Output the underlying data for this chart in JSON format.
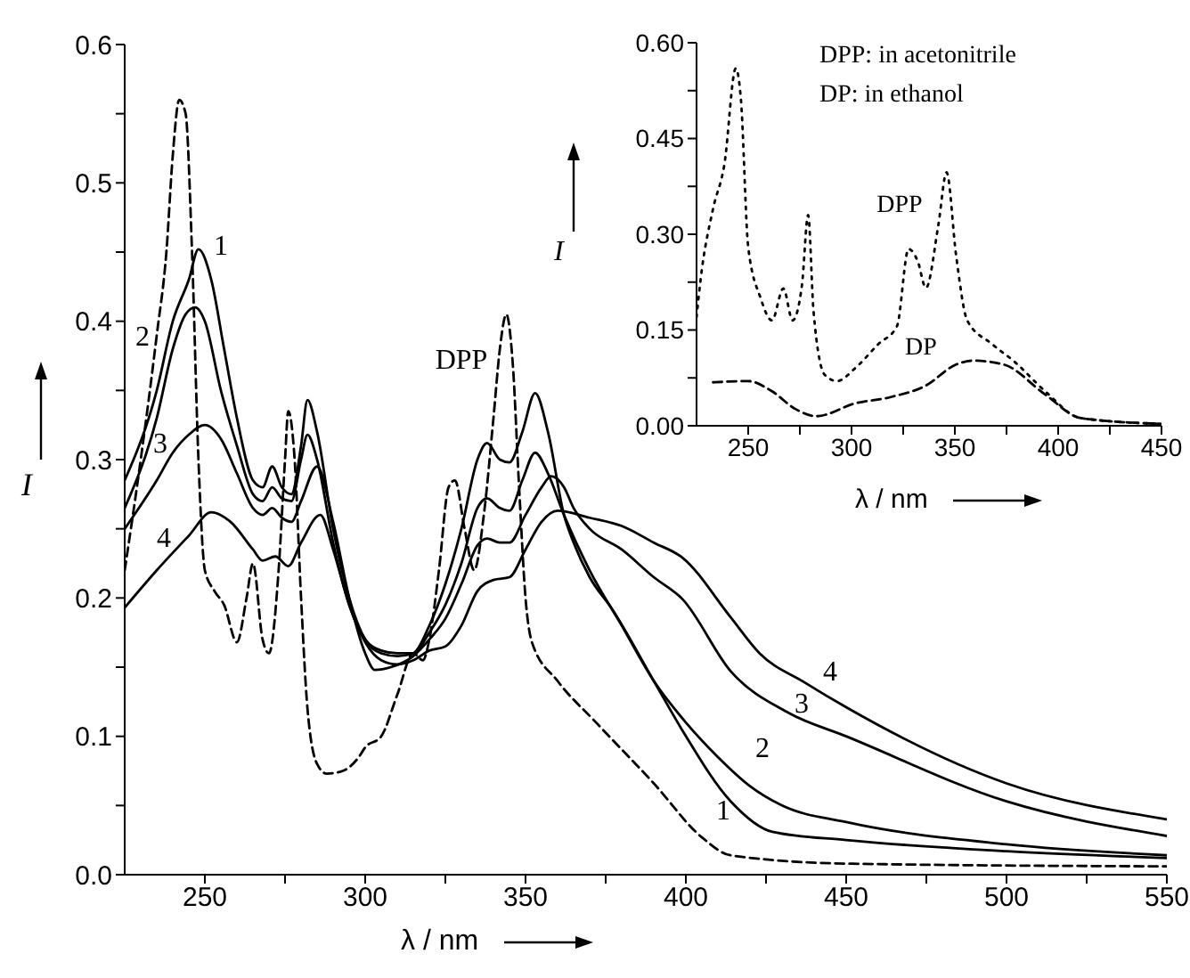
{
  "chart_data": [
    {
      "type": "line",
      "xlabel": "λ / nm",
      "ylabel": "I",
      "xlim": [
        225,
        550
      ],
      "ylim": [
        0,
        0.6
      ],
      "xticks": [
        {
          "value": 250,
          "label": "250"
        },
        {
          "value": 275,
          "label": null
        },
        {
          "value": 300,
          "label": "300"
        },
        {
          "value": 325,
          "label": null
        },
        {
          "value": 350,
          "label": "350"
        },
        {
          "value": 375,
          "label": null
        },
        {
          "value": 400,
          "label": "400"
        },
        {
          "value": 425,
          "label": null
        },
        {
          "value": 450,
          "label": "450"
        },
        {
          "value": 475,
          "label": null
        },
        {
          "value": 500,
          "label": "500"
        },
        {
          "value": 525,
          "label": null
        },
        {
          "value": 550,
          "label": "550"
        }
      ],
      "yticks": [
        {
          "value": 0,
          "label": "0.0"
        },
        {
          "value": 0.05,
          "label": null
        },
        {
          "value": 0.1,
          "label": "0.1"
        },
        {
          "value": 0.15,
          "label": null
        },
        {
          "value": 0.2,
          "label": "0.2"
        },
        {
          "value": 0.25,
          "label": null
        },
        {
          "value": 0.3,
          "label": "0.3"
        },
        {
          "value": 0.35,
          "label": null
        },
        {
          "value": 0.4,
          "label": "0.4"
        },
        {
          "value": 0.45,
          "label": null
        },
        {
          "value": 0.5,
          "label": "0.5"
        },
        {
          "value": 0.55,
          "label": null
        },
        {
          "value": 0.6,
          "label": "0.6"
        }
      ],
      "grid": false,
      "series": [
        {
          "color": "#000000",
          "line_style": "solid",
          "x": [
            225,
            235,
            240,
            245,
            248,
            252,
            256,
            260,
            265,
            268,
            271,
            274,
            277,
            280,
            282,
            285,
            290,
            295,
            300,
            305,
            310,
            315,
            320,
            325,
            330,
            335,
            338,
            342,
            345,
            349,
            353,
            357,
            362,
            365,
            370,
            377,
            390,
            399,
            414,
            427,
            450,
            500,
            550
          ],
          "values": [
            0.285,
            0.35,
            0.4,
            0.43,
            0.452,
            0.43,
            0.38,
            0.33,
            0.285,
            0.28,
            0.295,
            0.28,
            0.275,
            0.31,
            0.343,
            0.32,
            0.25,
            0.2,
            0.17,
            0.16,
            0.158,
            0.16,
            0.18,
            0.21,
            0.25,
            0.3,
            0.312,
            0.3,
            0.298,
            0.32,
            0.348,
            0.32,
            0.26,
            0.24,
            0.215,
            0.192,
            0.14,
            0.104,
            0.053,
            0.031,
            0.025,
            0.017,
            0.012
          ]
        },
        {
          "color": "#000000",
          "line_style": "solid",
          "x": [
            225,
            235,
            240,
            244,
            247,
            250,
            255,
            260,
            265,
            268,
            271,
            274,
            277,
            280,
            282,
            285,
            290,
            295,
            300,
            305,
            310,
            315,
            320,
            325,
            330,
            335,
            338,
            342,
            345,
            349,
            353,
            357,
            362,
            370,
            380,
            390,
            400,
            410,
            420,
            430,
            450,
            500,
            550
          ],
          "values": [
            0.265,
            0.33,
            0.38,
            0.405,
            0.41,
            0.4,
            0.35,
            0.31,
            0.275,
            0.27,
            0.28,
            0.272,
            0.27,
            0.3,
            0.318,
            0.3,
            0.24,
            0.195,
            0.17,
            0.162,
            0.16,
            0.16,
            0.175,
            0.195,
            0.225,
            0.265,
            0.272,
            0.265,
            0.263,
            0.285,
            0.305,
            0.29,
            0.26,
            0.22,
            0.18,
            0.14,
            0.11,
            0.085,
            0.064,
            0.05,
            0.038,
            0.022,
            0.014
          ]
        },
        {
          "color": "#000000",
          "line_style": "solid",
          "x": [
            225,
            235,
            240,
            245,
            250,
            255,
            260,
            265,
            268,
            271,
            274,
            277,
            280,
            285,
            290,
            295,
            300,
            303,
            308,
            315,
            320,
            325,
            330,
            335,
            338,
            342,
            345,
            350,
            355,
            358,
            362,
            365,
            370,
            380,
            390,
            399,
            414,
            432,
            450,
            500,
            550
          ],
          "values": [
            0.25,
            0.285,
            0.305,
            0.318,
            0.325,
            0.315,
            0.29,
            0.265,
            0.26,
            0.265,
            0.258,
            0.255,
            0.27,
            0.295,
            0.255,
            0.2,
            0.16,
            0.148,
            0.15,
            0.158,
            0.17,
            0.185,
            0.21,
            0.238,
            0.243,
            0.24,
            0.24,
            0.26,
            0.28,
            0.288,
            0.28,
            0.265,
            0.25,
            0.235,
            0.215,
            0.199,
            0.147,
            0.117,
            0.1,
            0.053,
            0.028
          ]
        },
        {
          "color": "#000000",
          "line_style": "solid",
          "x": [
            225,
            235,
            245,
            252,
            258,
            265,
            268,
            272,
            276,
            280,
            286,
            290,
            295,
            300,
            305,
            310,
            315,
            320,
            325,
            330,
            335,
            340,
            345,
            350,
            355,
            360,
            370,
            380,
            390,
            399,
            414,
            423,
            437,
            450,
            500,
            550
          ],
          "values": [
            0.193,
            0.22,
            0.245,
            0.262,
            0.255,
            0.235,
            0.227,
            0.23,
            0.223,
            0.24,
            0.26,
            0.235,
            0.195,
            0.168,
            0.155,
            0.152,
            0.155,
            0.162,
            0.165,
            0.18,
            0.205,
            0.213,
            0.215,
            0.235,
            0.255,
            0.263,
            0.258,
            0.252,
            0.24,
            0.229,
            0.186,
            0.16,
            0.139,
            0.121,
            0.066,
            0.04
          ]
        },
        {
          "color": "#000000",
          "line_style": "dashed",
          "x": [
            225,
            230,
            235,
            238,
            240,
            242,
            244,
            246,
            248,
            250,
            253,
            256,
            260,
            263,
            265,
            268,
            270,
            273,
            275,
            276,
            278,
            280,
            282,
            285,
            288,
            293,
            298,
            300,
            305,
            310,
            315,
            318,
            320,
            323,
            326,
            328,
            331,
            334,
            337,
            340,
            342,
            344,
            346,
            348,
            350,
            352,
            360,
            372,
            390,
            405,
            414,
            450,
            550
          ],
          "values": [
            0.22,
            0.3,
            0.39,
            0.45,
            0.52,
            0.56,
            0.55,
            0.45,
            0.3,
            0.22,
            0.205,
            0.195,
            0.168,
            0.2,
            0.225,
            0.17,
            0.16,
            0.22,
            0.3,
            0.335,
            0.3,
            0.2,
            0.12,
            0.08,
            0.073,
            0.075,
            0.085,
            0.092,
            0.1,
            0.13,
            0.16,
            0.155,
            0.17,
            0.22,
            0.28,
            0.285,
            0.25,
            0.22,
            0.26,
            0.33,
            0.38,
            0.405,
            0.37,
            0.28,
            0.2,
            0.168,
            0.14,
            0.11,
            0.066,
            0.027,
            0.014,
            0.008,
            0.006
          ]
        }
      ],
      "annotations": [
        "1",
        "2",
        "3",
        "4",
        "DPP",
        "1",
        "2",
        "3",
        "4"
      ]
    },
    {
      "type": "line",
      "xlabel": "λ / nm",
      "ylabel": "I",
      "xlim": [
        225,
        450
      ],
      "ylim": [
        0,
        0.6
      ],
      "xticks": [
        {
          "value": 250,
          "label": "250"
        },
        {
          "value": 275,
          "label": null
        },
        {
          "value": 300,
          "label": "300"
        },
        {
          "value": 325,
          "label": null
        },
        {
          "value": 350,
          "label": "350"
        },
        {
          "value": 375,
          "label": null
        },
        {
          "value": 400,
          "label": "400"
        },
        {
          "value": 425,
          "label": null
        },
        {
          "value": 450,
          "label": "450"
        }
      ],
      "yticks": [
        {
          "value": 0,
          "label": "0.00"
        },
        {
          "value": 0.075,
          "label": null
        },
        {
          "value": 0.15,
          "label": "0.15"
        },
        {
          "value": 0.225,
          "label": null
        },
        {
          "value": 0.3,
          "label": "0.30"
        },
        {
          "value": 0.375,
          "label": null
        },
        {
          "value": 0.45,
          "label": "0.45"
        },
        {
          "value": 0.525,
          "label": null
        },
        {
          "value": 0.6,
          "label": "0.60"
        }
      ],
      "grid": false,
      "series": [
        {
          "color": "#000000",
          "line_style": "dotted",
          "x": [
            225,
            227,
            233,
            238.5,
            244,
            246.5,
            250,
            256,
            261.5,
            267,
            271.5,
            276,
            279,
            281.6,
            287,
            293,
            301.7,
            313,
            322,
            327.6,
            332,
            336,
            342,
            346,
            350.6,
            356,
            368,
            379,
            393.7,
            411,
            450
          ],
          "values": [
            0.17,
            0.23,
            0.34,
            0.41,
            0.56,
            0.51,
            0.28,
            0.2,
            0.165,
            0.215,
            0.165,
            0.22,
            0.33,
            0.18,
            0.08,
            0.07,
            0.09,
            0.128,
            0.156,
            0.277,
            0.258,
            0.216,
            0.314,
            0.397,
            0.267,
            0.165,
            0.128,
            0.1,
            0.054,
            0.012,
            0.003
          ]
        },
        {
          "color": "#000000",
          "line_style": "dashed",
          "x": [
            233,
            250,
            261.5,
            273,
            283,
            301.7,
            319,
            336,
            350.6,
            359,
            373.6,
            393.7,
            411,
            450
          ],
          "values": [
            0.068,
            0.07,
            0.054,
            0.026,
            0.015,
            0.035,
            0.045,
            0.063,
            0.096,
            0.102,
            0.096,
            0.049,
            0.012,
            0.003
          ]
        }
      ],
      "annotations": [
        "DPP: in acetonitrile",
        "DP: in ethanol",
        "DPP",
        "DP"
      ]
    }
  ]
}
